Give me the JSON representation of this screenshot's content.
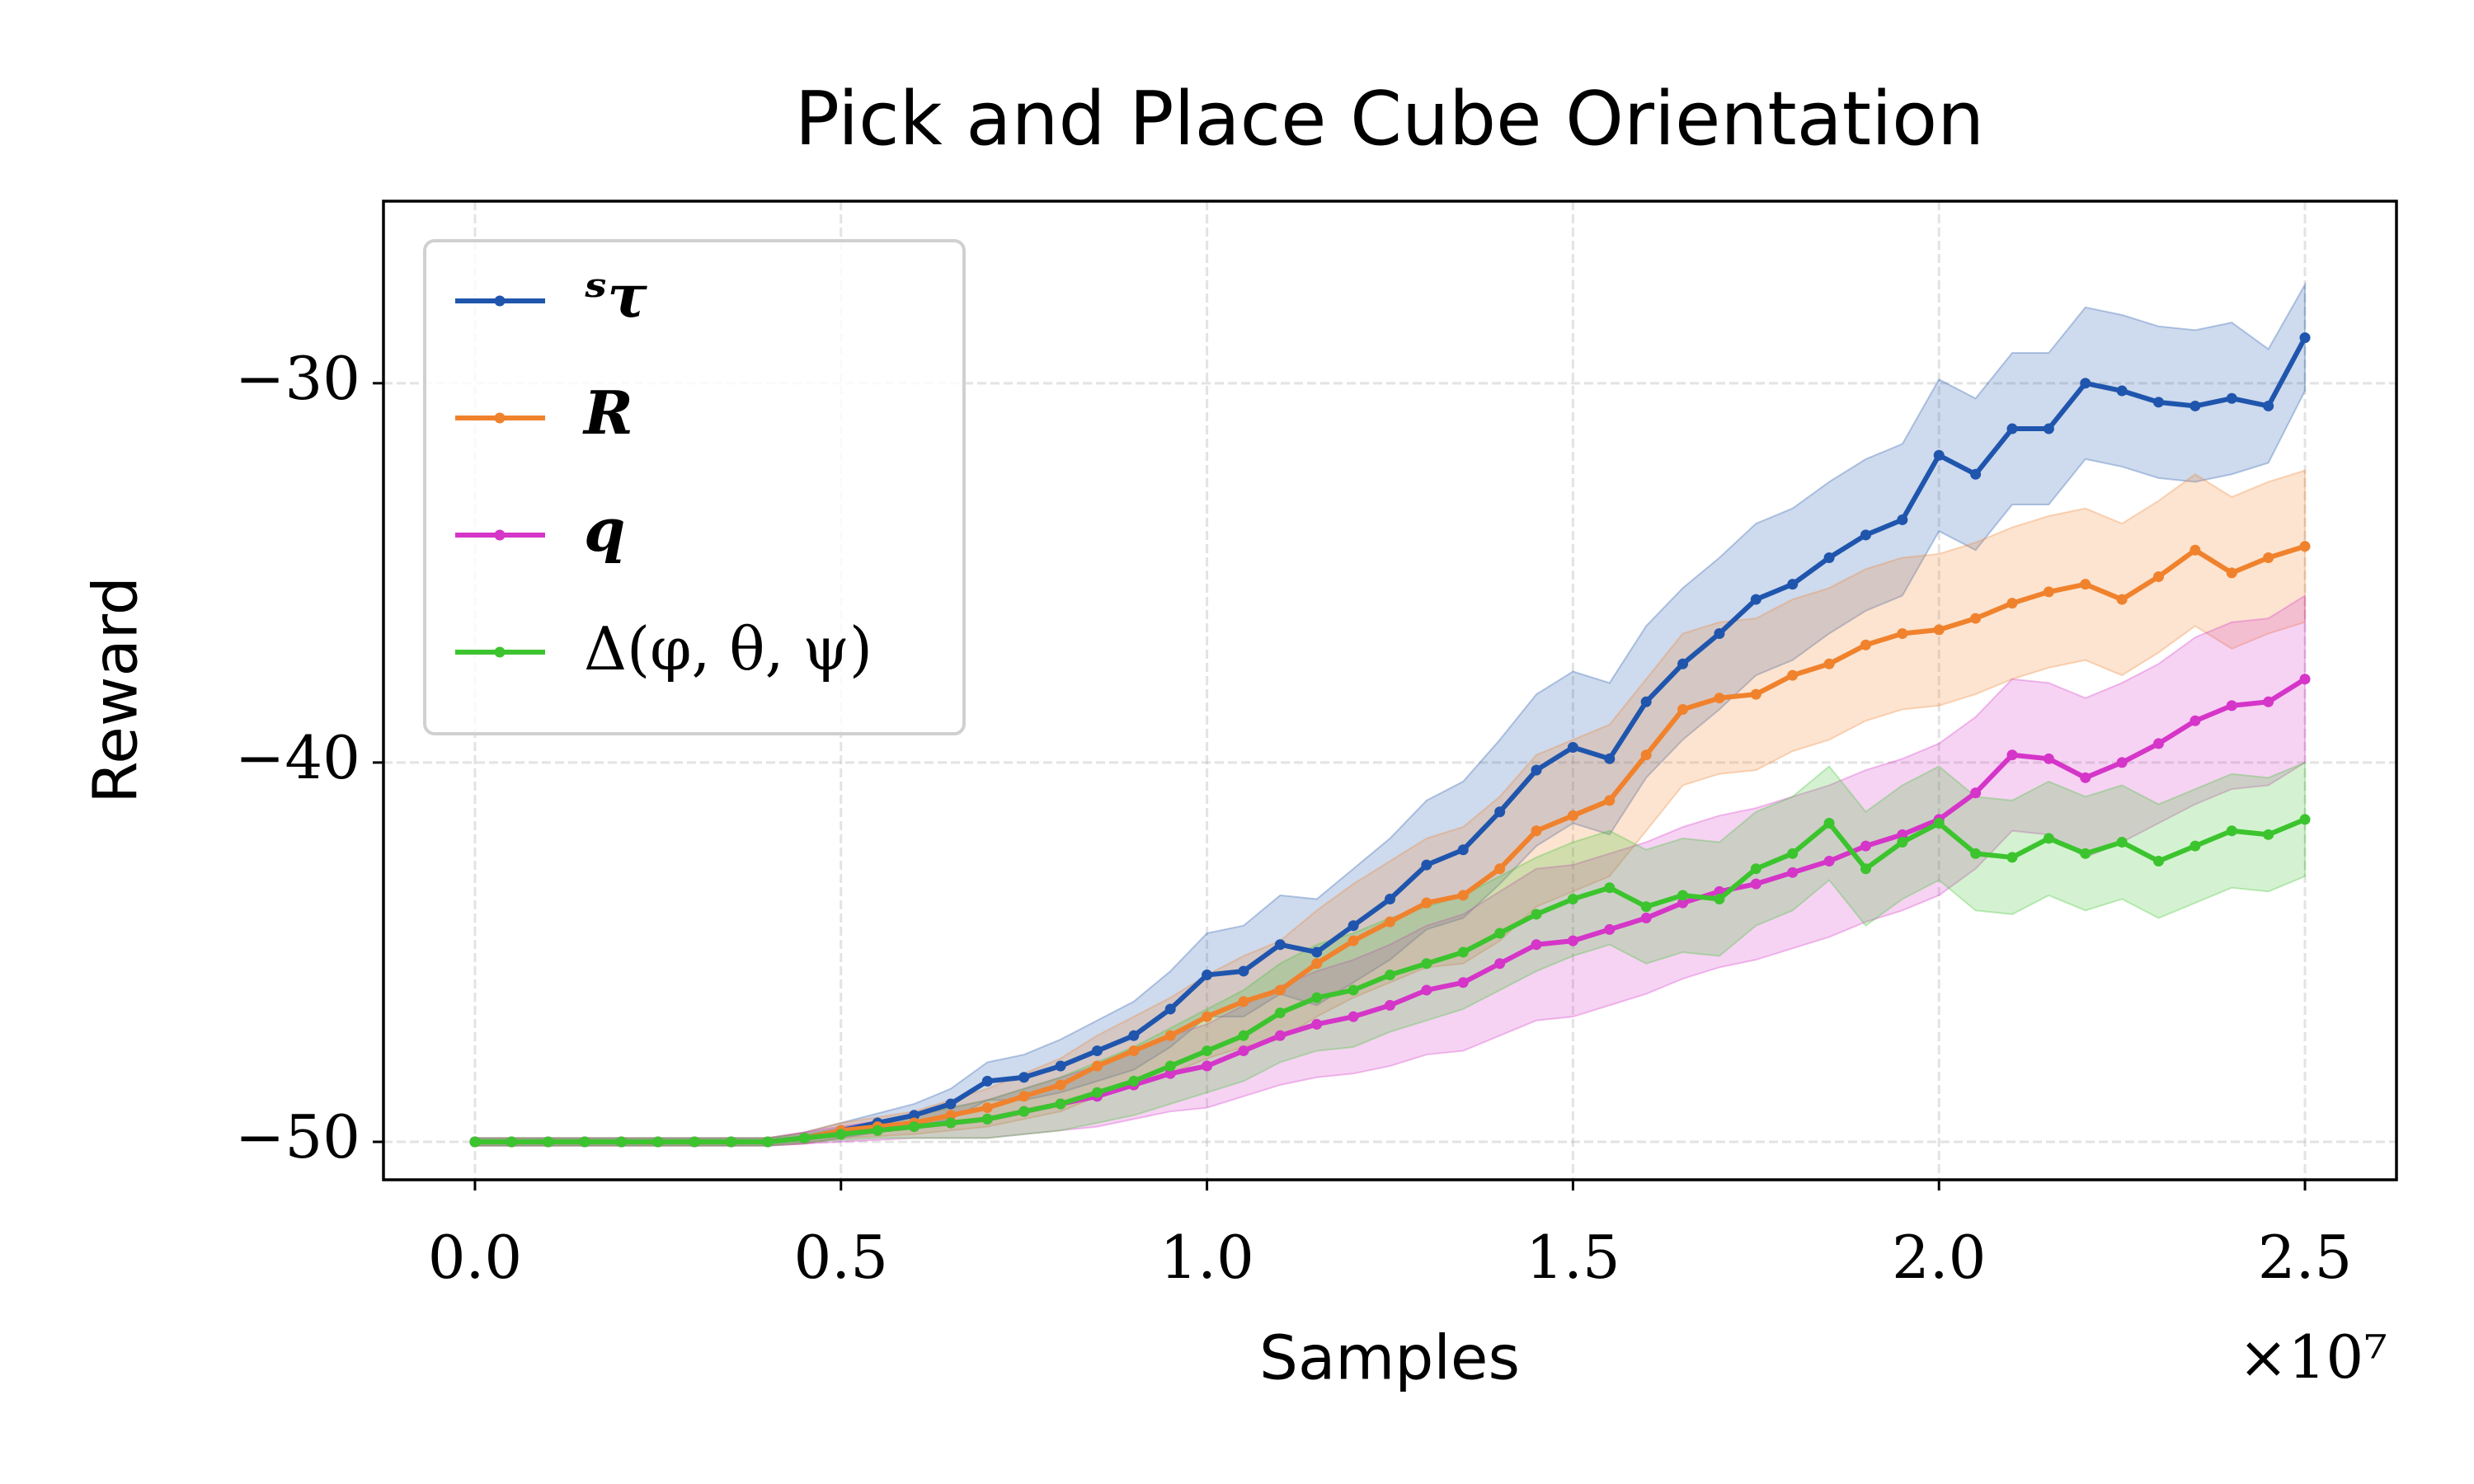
{
  "chart_data": {
    "type": "line",
    "title": "Pick and Place Cube Orientation",
    "x_label": "Samples",
    "y_label": "Reward",
    "x_offset_label": "×10⁷",
    "x": [
      0,
      0.05,
      0.1,
      0.15,
      0.2,
      0.25,
      0.3,
      0.35,
      0.4,
      0.45,
      0.5,
      0.55,
      0.6,
      0.65,
      0.7,
      0.75,
      0.8,
      0.85,
      0.9,
      0.95,
      1.0,
      1.05,
      1.1,
      1.15,
      1.2,
      1.25,
      1.3,
      1.35,
      1.4,
      1.45,
      1.5,
      1.55,
      1.6,
      1.65,
      1.7,
      1.75,
      1.8,
      1.85,
      1.9,
      1.95,
      2.0,
      2.05,
      2.1,
      2.15,
      2.2,
      2.25,
      2.3,
      2.35,
      2.4,
      2.45,
      2.5
    ],
    "xlim": [
      -0.125,
      2.625
    ],
    "ylim": [
      -51.0,
      -25.2
    ],
    "xticks": [
      {
        "value": 0,
        "label": "0.0"
      },
      0.5,
      {
        "value": 1,
        "label": "1.0"
      },
      1.5,
      {
        "value": 2,
        "label": "2.0"
      },
      2.5
    ],
    "yticks": [
      {
        "value": -50,
        "label": "−50"
      },
      {
        "value": -40,
        "label": "−40"
      },
      {
        "value": -30,
        "label": "−30"
      }
    ],
    "grid": true,
    "legend": "upper left",
    "series": [
      {
        "name": "ˢτ",
        "color": "#1f55ad",
        "values": [
          -50,
          -50,
          -50,
          -50,
          -50,
          -50,
          -50,
          -50,
          -50,
          -49.9,
          -49.7,
          -49.5,
          -49.3,
          -49,
          -48.4,
          -48.3,
          -48,
          -47.6,
          -47.2,
          -46.5,
          -45.6,
          -45.5,
          -44.8,
          -45,
          -44.3,
          -43.6,
          -42.7,
          -42.3,
          -41.3,
          -40.2,
          -39.6,
          -39.9,
          -38.4,
          -37.4,
          -36.6,
          -35.7,
          -35.3,
          -34.6,
          -34,
          -33.6,
          -31.9,
          -32.4,
          -31.2,
          -31.2,
          -30,
          -30.2,
          -30.5,
          -30.6,
          -30.4,
          -30.6,
          -28.8
        ],
        "errors": [
          0.1,
          0.1,
          0.1,
          0.1,
          0.1,
          0.1,
          0.1,
          0.1,
          0.1,
          0.15,
          0.2,
          0.25,
          0.3,
          0.4,
          0.5,
          0.6,
          0.7,
          0.8,
          0.9,
          1.0,
          1.1,
          1.2,
          1.3,
          1.4,
          1.5,
          1.6,
          1.7,
          1.8,
          1.9,
          2.0,
          2.0,
          2.0,
          2.0,
          2.0,
          2.0,
          2.0,
          2.0,
          2.0,
          2.0,
          2.0,
          2.0,
          2.0,
          2.0,
          2.0,
          2.0,
          2.0,
          2.0,
          2.0,
          2.0,
          1.5,
          1.4
        ]
      },
      {
        "name": "R",
        "color": "#f0822d",
        "values": [
          -50,
          -50,
          -50,
          -50,
          -50,
          -50,
          -50,
          -50,
          -50,
          -49.9,
          -49.7,
          -49.6,
          -49.5,
          -49.3,
          -49.1,
          -48.8,
          -48.5,
          -48,
          -47.6,
          -47.2,
          -46.7,
          -46.3,
          -46,
          -45.3,
          -44.7,
          -44.2,
          -43.7,
          -43.5,
          -42.8,
          -41.8,
          -41.4,
          -41,
          -39.8,
          -38.6,
          -38.3,
          -38.2,
          -37.7,
          -37.4,
          -36.9,
          -36.6,
          -36.5,
          -36.2,
          -35.8,
          -35.5,
          -35.3,
          -35.7,
          -35.1,
          -34.4,
          -35,
          -34.6,
          -34.3
        ],
        "errors": [
          0.1,
          0.1,
          0.1,
          0.1,
          0.1,
          0.1,
          0.1,
          0.1,
          0.1,
          0.15,
          0.2,
          0.25,
          0.3,
          0.4,
          0.5,
          0.6,
          0.7,
          0.8,
          0.9,
          1.0,
          1.1,
          1.2,
          1.3,
          1.4,
          1.5,
          1.6,
          1.7,
          1.8,
          1.9,
          2.0,
          2.0,
          2.0,
          2.0,
          2.0,
          2.0,
          2.0,
          2.0,
          2.0,
          2.0,
          2.0,
          2.0,
          2.0,
          2.0,
          2.0,
          2.0,
          2.0,
          2.0,
          2.0,
          2.0,
          2.0,
          2.0
        ]
      },
      {
        "name": "q",
        "color": "#d535c8",
        "values": [
          -50,
          -50,
          -50,
          -50,
          -50,
          -50,
          -50,
          -50,
          -50,
          -49.9,
          -49.8,
          -49.7,
          -49.6,
          -49.5,
          -49.4,
          -49.2,
          -49,
          -48.8,
          -48.5,
          -48.2,
          -48,
          -47.6,
          -47.2,
          -46.9,
          -46.7,
          -46.4,
          -46,
          -45.8,
          -45.3,
          -44.8,
          -44.7,
          -44.4,
          -44.1,
          -43.7,
          -43.4,
          -43.2,
          -42.9,
          -42.6,
          -42.2,
          -41.9,
          -41.5,
          -40.8,
          -39.8,
          -39.9,
          -40.4,
          -40,
          -39.5,
          -38.9,
          -38.5,
          -38.4,
          -37.8
        ],
        "errors": [
          0.1,
          0.1,
          0.1,
          0.1,
          0.1,
          0.1,
          0.1,
          0.1,
          0.1,
          0.15,
          0.2,
          0.25,
          0.3,
          0.4,
          0.5,
          0.6,
          0.7,
          0.8,
          0.9,
          1.0,
          1.1,
          1.2,
          1.3,
          1.4,
          1.5,
          1.6,
          1.7,
          1.8,
          1.9,
          2.0,
          2.0,
          2.0,
          2.0,
          2.0,
          2.0,
          2.0,
          2.0,
          2.0,
          2.0,
          2.0,
          2.0,
          2.0,
          2.0,
          2.0,
          2.1,
          2.1,
          2.1,
          2.2,
          2.2,
          2.2,
          2.2
        ]
      },
      {
        "name": "Δ(φ, θ, ψ)",
        "color": "#3cc42e",
        "values": [
          -50,
          -50,
          -50,
          -50,
          -50,
          -50,
          -50,
          -50,
          -50,
          -49.9,
          -49.8,
          -49.7,
          -49.6,
          -49.5,
          -49.4,
          -49.2,
          -49,
          -48.7,
          -48.4,
          -48,
          -47.6,
          -47.2,
          -46.6,
          -46.2,
          -46,
          -45.6,
          -45.3,
          -45,
          -44.5,
          -44,
          -43.6,
          -43.3,
          -43.8,
          -43.5,
          -43.6,
          -42.8,
          -42.4,
          -41.6,
          -42.8,
          -42.1,
          -41.6,
          -42.4,
          -42.5,
          -42,
          -42.4,
          -42.1,
          -42.6,
          -42.2,
          -41.8,
          -41.9,
          -41.5
        ],
        "errors": [
          0.1,
          0.1,
          0.1,
          0.1,
          0.1,
          0.1,
          0.1,
          0.1,
          0.1,
          0.1,
          0.15,
          0.2,
          0.3,
          0.4,
          0.5,
          0.6,
          0.7,
          0.8,
          0.9,
          1.0,
          1.1,
          1.2,
          1.3,
          1.4,
          1.5,
          1.5,
          1.5,
          1.5,
          1.5,
          1.5,
          1.5,
          1.5,
          1.5,
          1.5,
          1.5,
          1.5,
          1.5,
          1.5,
          1.5,
          1.5,
          1.5,
          1.5,
          1.5,
          1.5,
          1.5,
          1.5,
          1.5,
          1.5,
          1.5,
          1.5,
          1.5
        ]
      }
    ]
  }
}
